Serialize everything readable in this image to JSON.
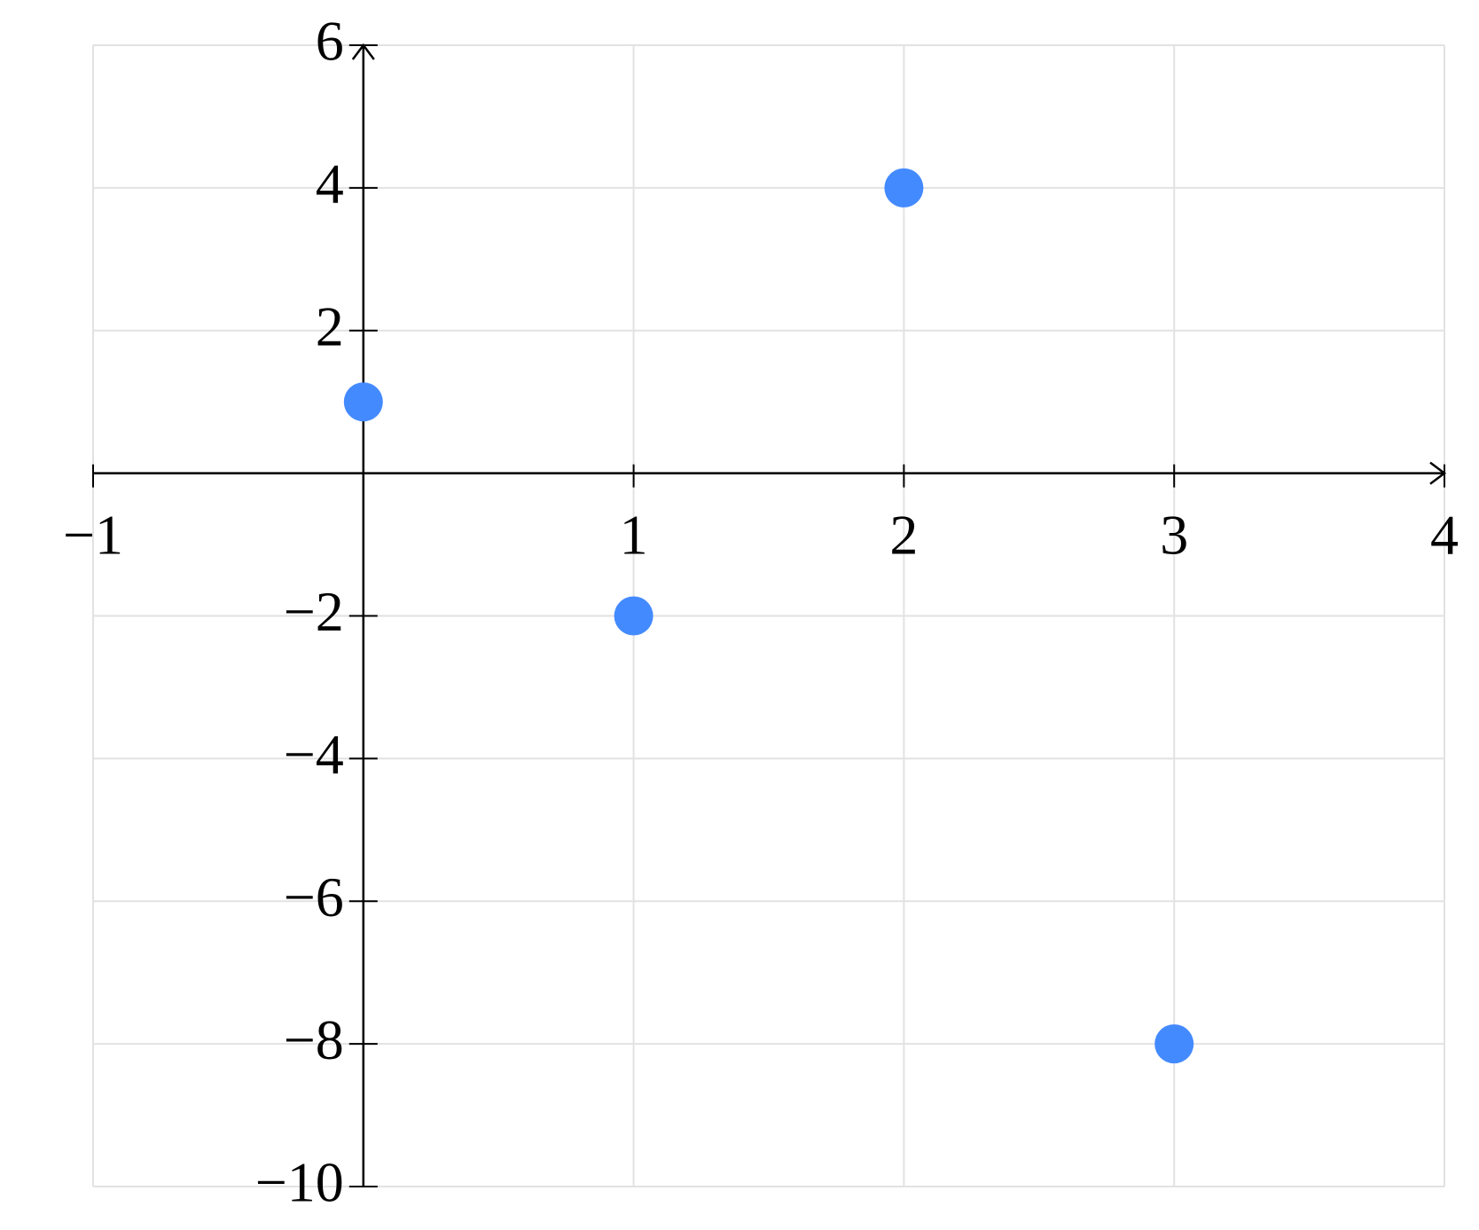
{
  "chart_data": {
    "type": "scatter",
    "x": [
      0,
      1,
      2,
      3
    ],
    "values": [
      1,
      -2,
      4,
      -8
    ],
    "color": "#448aff",
    "xlim": [
      -1,
      4
    ],
    "ylim": [
      -10,
      6
    ],
    "xticks": [
      {
        "value": -1,
        "label": "−1"
      },
      1,
      2,
      3,
      4
    ],
    "yticks": [
      {
        "value": -10,
        "label": "−10"
      },
      {
        "value": -8,
        "label": "−8"
      },
      {
        "value": -6,
        "label": "−6"
      },
      {
        "value": -4,
        "label": "−4"
      },
      {
        "value": -2,
        "label": "−2"
      },
      2,
      4,
      6
    ],
    "grid": true
  }
}
